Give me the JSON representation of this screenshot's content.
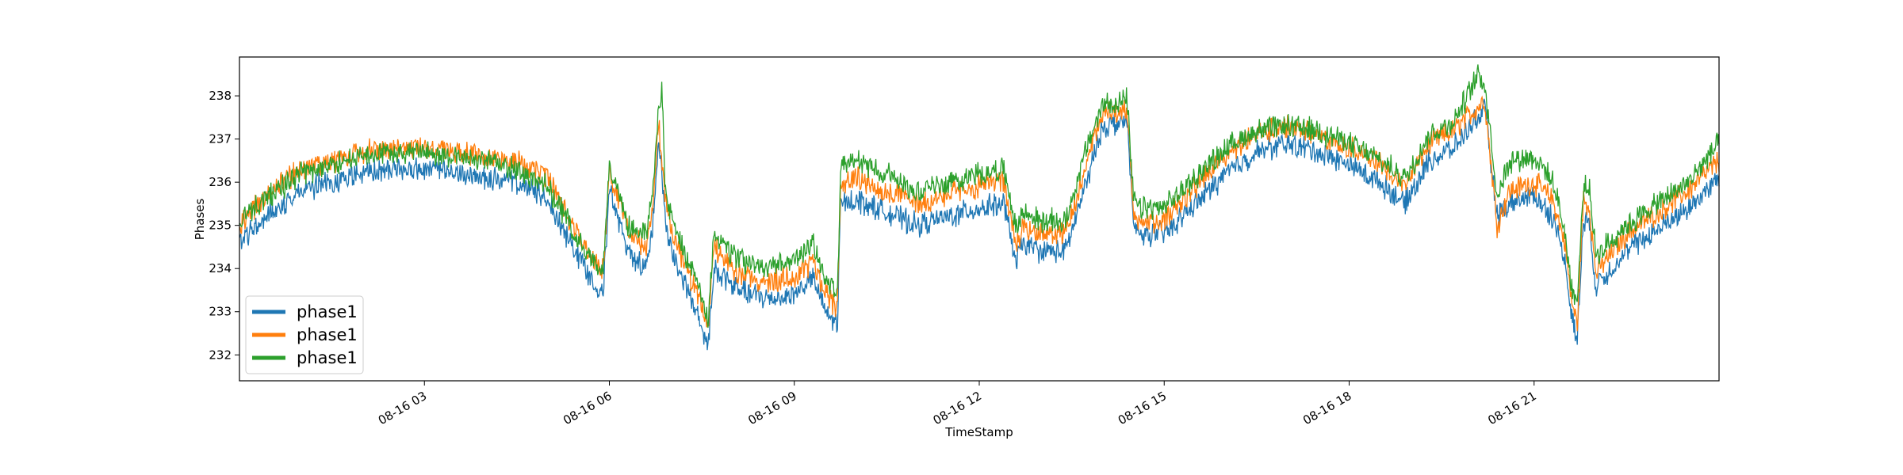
{
  "chart_data": {
    "type": "line",
    "title": "",
    "xlabel": "TimeStamp",
    "ylabel": "Phases",
    "x_tick_labels": [
      "08-16 03",
      "08-16 06",
      "08-16 09",
      "08-16 12",
      "08-16 15",
      "08-16 18",
      "08-16 21"
    ],
    "x_tick_hours": [
      3,
      6,
      9,
      12,
      15,
      18,
      21
    ],
    "xlim_hours": [
      0,
      24
    ],
    "ylim": [
      231.4,
      238.9
    ],
    "y_ticks": [
      232,
      233,
      234,
      235,
      236,
      237,
      238
    ],
    "grid": false,
    "legend_position": "lower-left",
    "series": [
      {
        "name": "phase1",
        "color": "#1f77b4",
        "x_hours": [
          0,
          0.5,
          1,
          1.5,
          2,
          2.5,
          3,
          3.5,
          4,
          4.5,
          5,
          5.4,
          5.8,
          5.9,
          6.0,
          6.3,
          6.6,
          6.7,
          6.8,
          6.9,
          7.0,
          7.4,
          7.6,
          7.7,
          8,
          8.3,
          8.6,
          9,
          9.3,
          9.5,
          9.7,
          9.75,
          10,
          10.5,
          11,
          11.5,
          12,
          12.4,
          12.6,
          12.7,
          13,
          13.4,
          13.7,
          14,
          14.4,
          14.5,
          14.6,
          15,
          15.5,
          16,
          16.5,
          17,
          17.5,
          18,
          18.5,
          18.9,
          19.3,
          19.7,
          20.2,
          20.4,
          20.6,
          21.0,
          21.3,
          21.5,
          21.6,
          21.7,
          21.8,
          21.9,
          22.0,
          22.5,
          23,
          23.5,
          24
        ],
        "values": [
          234.6,
          235.3,
          235.8,
          236.0,
          236.2,
          236.3,
          236.3,
          236.2,
          236.1,
          236.0,
          235.6,
          234.5,
          233.6,
          233.5,
          235.8,
          234.4,
          234.0,
          235.0,
          237.0,
          235.3,
          234.4,
          233.0,
          232.2,
          234.0,
          233.6,
          233.4,
          233.3,
          233.4,
          233.8,
          233.0,
          232.7,
          235.5,
          235.6,
          235.3,
          235.0,
          235.2,
          235.4,
          235.5,
          234.1,
          234.6,
          234.4,
          234.4,
          235.8,
          237.3,
          237.4,
          235.0,
          234.8,
          234.8,
          235.5,
          236.2,
          236.7,
          236.9,
          236.7,
          236.4,
          236.0,
          235.5,
          236.5,
          236.8,
          237.7,
          235.2,
          235.5,
          235.7,
          235.2,
          234.2,
          233.0,
          232.3,
          235.2,
          235.0,
          233.6,
          234.4,
          234.9,
          235.4,
          236.1
        ]
      },
      {
        "name": "phase1",
        "color": "#ff7f0e",
        "x_hours": [
          0,
          0.5,
          1,
          1.5,
          2,
          2.5,
          3,
          3.5,
          4,
          4.5,
          5,
          5.4,
          5.8,
          5.9,
          6.0,
          6.3,
          6.6,
          6.7,
          6.8,
          6.9,
          7.0,
          7.4,
          7.6,
          7.7,
          8,
          8.3,
          8.6,
          9,
          9.3,
          9.5,
          9.7,
          9.75,
          10,
          10.5,
          11,
          11.5,
          12,
          12.4,
          12.6,
          12.7,
          13,
          13.4,
          13.7,
          14,
          14.4,
          14.5,
          14.6,
          15,
          15.5,
          16,
          16.5,
          17,
          17.5,
          18,
          18.5,
          18.9,
          19.3,
          19.7,
          20.2,
          20.4,
          20.6,
          21.0,
          21.3,
          21.5,
          21.6,
          21.7,
          21.8,
          21.9,
          22.0,
          22.5,
          23,
          23.5,
          24
        ],
        "values": [
          235.0,
          235.8,
          236.3,
          236.5,
          236.7,
          236.8,
          236.8,
          236.7,
          236.6,
          236.5,
          236.1,
          235.0,
          234.1,
          234.0,
          236.3,
          234.9,
          234.5,
          235.4,
          237.3,
          235.7,
          234.9,
          233.5,
          232.7,
          234.5,
          234.0,
          233.8,
          233.7,
          233.8,
          234.2,
          233.4,
          233.1,
          235.9,
          236.1,
          235.8,
          235.5,
          235.7,
          235.9,
          236.0,
          234.5,
          235.0,
          234.8,
          234.8,
          236.2,
          237.6,
          237.7,
          235.3,
          235.1,
          235.1,
          235.9,
          236.6,
          237.1,
          237.3,
          237.1,
          236.8,
          236.4,
          235.9,
          236.9,
          237.2,
          237.9,
          235.0,
          235.8,
          236.0,
          235.6,
          234.6,
          233.3,
          232.7,
          235.6,
          235.4,
          233.9,
          234.8,
          235.3,
          235.8,
          236.5
        ]
      },
      {
        "name": "phase1",
        "color": "#2ca02c",
        "x_hours": [
          0,
          0.5,
          1,
          1.5,
          2,
          2.5,
          3,
          3.5,
          4,
          4.5,
          5,
          5.4,
          5.8,
          5.9,
          6.0,
          6.3,
          6.6,
          6.7,
          6.8,
          6.85,
          6.9,
          7.0,
          7.4,
          7.6,
          7.7,
          8,
          8.3,
          8.6,
          9,
          9.3,
          9.5,
          9.7,
          9.75,
          10,
          10.5,
          11,
          11.5,
          12,
          12.4,
          12.6,
          12.7,
          13,
          13.4,
          13.7,
          14,
          14.4,
          14.5,
          14.6,
          15,
          15.5,
          16,
          16.5,
          17,
          17.5,
          18,
          18.5,
          18.9,
          19.3,
          19.7,
          20.1,
          20.2,
          20.4,
          20.6,
          21.0,
          21.3,
          21.5,
          21.6,
          21.7,
          21.8,
          21.9,
          22.0,
          22.5,
          23,
          23.5,
          24
        ],
        "values": [
          235.1,
          235.7,
          236.2,
          236.4,
          236.6,
          236.7,
          236.7,
          236.6,
          236.5,
          236.3,
          235.9,
          234.9,
          234.0,
          233.9,
          236.5,
          235.0,
          234.8,
          235.7,
          237.6,
          238.3,
          235.9,
          235.2,
          233.7,
          232.9,
          234.8,
          234.3,
          234.1,
          234.0,
          234.2,
          234.6,
          233.8,
          233.4,
          236.3,
          236.5,
          236.2,
          235.8,
          236.0,
          236.2,
          236.3,
          234.9,
          235.3,
          235.1,
          235.1,
          236.6,
          237.8,
          237.9,
          235.6,
          235.4,
          235.4,
          236.1,
          236.8,
          237.2,
          237.3,
          237.2,
          236.9,
          236.5,
          236.1,
          237.1,
          237.4,
          238.5,
          238.3,
          235.7,
          236.5,
          236.6,
          236.0,
          234.9,
          233.6,
          233.2,
          235.9,
          235.8,
          234.3,
          235.0,
          235.5,
          236.0,
          236.9
        ]
      }
    ]
  }
}
